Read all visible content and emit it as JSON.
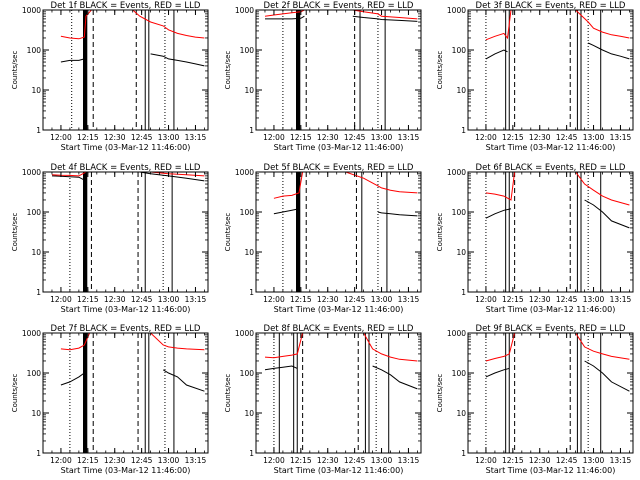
{
  "figure": {
    "start_time_label": "Start Time (03-Mar-12 11:46:00)",
    "ylabel": "Counts/sec",
    "x_ticks": [
      "12:00",
      "12:15",
      "12:30",
      "12:45",
      "13:00",
      "13:15"
    ],
    "y_ticks": [
      "1",
      "10",
      "100",
      "1000"
    ],
    "colors": {
      "events": "#000000",
      "lld": "#ff0000",
      "axis": "#000000"
    }
  },
  "chart_data": [
    {
      "type": "line",
      "title": "Det 1f BLACK = Events, RED = LLD",
      "xlabel": "Start Time (03-Mar-12 11:46:00)",
      "ylabel": "Counts/sec",
      "xlim": [
        "11:50",
        "13:22"
      ],
      "ylim": [
        1,
        1000
      ],
      "y_scale": "log",
      "x": [
        "12:00",
        "12:05",
        "12:10",
        "12:13",
        "12:14",
        "12:17",
        "12:20",
        "12:30",
        "12:40",
        "12:44",
        "12:50",
        "12:57",
        "13:00",
        "13:05",
        "13:10",
        "13:15",
        "13:20"
      ],
      "series": [
        {
          "name": "BLACK = Events",
          "values": [
            50,
            55,
            55,
            60,
            null,
            null,
            60,
            null,
            null,
            null,
            80,
            70,
            60,
            55,
            50,
            45,
            40
          ]
        },
        {
          "name": "RED = LLD",
          "values": [
            220,
            200,
            190,
            210,
            700,
            1000,
            1000,
            1000,
            1000,
            700,
            500,
            400,
            320,
            260,
            230,
            210,
            200
          ]
        }
      ],
      "markers": [
        {
          "kind": "dotted",
          "x": "12:06"
        },
        {
          "kind": "thick",
          "x": "12:13"
        },
        {
          "kind": "thick",
          "x": "12:14"
        },
        {
          "kind": "dashed",
          "x": "12:18"
        },
        {
          "kind": "dashed",
          "x": "12:42"
        },
        {
          "kind": "solid",
          "x": "12:47"
        },
        {
          "kind": "solid",
          "x": "12:49"
        },
        {
          "kind": "dotted",
          "x": "12:58"
        },
        {
          "kind": "solid",
          "x": "13:03"
        }
      ]
    },
    {
      "type": "line",
      "title": "Det 2f BLACK = Events, RED = LLD",
      "xlabel": "Start Time (03-Mar-12 11:46:00)",
      "ylabel": "Counts/sec",
      "xlim": [
        "11:50",
        "13:22"
      ],
      "ylim": [
        1,
        1000
      ],
      "y_scale": "log",
      "x": [
        "11:55",
        "12:00",
        "12:05",
        "12:10",
        "12:15",
        "12:17",
        "12:20",
        "12:30",
        "12:40",
        "12:44",
        "12:50",
        "12:58",
        "13:00",
        "13:10",
        "13:20"
      ],
      "series": [
        {
          "name": "BLACK = Events",
          "values": [
            600,
            600,
            600,
            600,
            620,
            700,
            null,
            null,
            null,
            700,
            650,
            600,
            580,
            550,
            520
          ]
        },
        {
          "name": "RED = LLD",
          "values": [
            700,
            750,
            800,
            850,
            900,
            1000,
            1000,
            1000,
            1000,
            1000,
            900,
            800,
            700,
            650,
            600
          ]
        }
      ],
      "markers": [
        {
          "kind": "dotted",
          "x": "12:05"
        },
        {
          "kind": "thick",
          "x": "12:13"
        },
        {
          "kind": "thick",
          "x": "12:14"
        },
        {
          "kind": "dashed",
          "x": "12:18"
        },
        {
          "kind": "dashed",
          "x": "12:45"
        },
        {
          "kind": "solid",
          "x": "12:48"
        },
        {
          "kind": "dotted",
          "x": "12:58"
        },
        {
          "kind": "solid",
          "x": "13:02"
        }
      ]
    },
    {
      "type": "line",
      "title": "Det 3f BLACK = Events, RED = LLD",
      "xlabel": "Start Time (03-Mar-12 11:46:00)",
      "ylabel": "Counts/sec",
      "xlim": [
        "11:50",
        "13:22"
      ],
      "ylim": [
        1,
        1000
      ],
      "y_scale": "log",
      "x": [
        "12:00",
        "12:05",
        "12:10",
        "12:12",
        "12:14",
        "12:16",
        "12:20",
        "12:40",
        "12:50",
        "12:57",
        "13:00",
        "13:05",
        "13:10",
        "13:15",
        "13:20"
      ],
      "series": [
        {
          "name": "BLACK = Events",
          "values": [
            60,
            80,
            100,
            90,
            null,
            null,
            null,
            null,
            null,
            150,
            130,
            100,
            80,
            70,
            60
          ]
        },
        {
          "name": "RED = LLD",
          "values": [
            180,
            220,
            260,
            200,
            1000,
            1000,
            1000,
            1000,
            1000,
            500,
            350,
            280,
            240,
            220,
            200
          ]
        }
      ],
      "markers": [
        {
          "kind": "dotted",
          "x": "12:00"
        },
        {
          "kind": "solid",
          "x": "12:11"
        },
        {
          "kind": "solid",
          "x": "12:13"
        },
        {
          "kind": "dashed",
          "x": "12:16"
        },
        {
          "kind": "dashed",
          "x": "12:47"
        },
        {
          "kind": "solid",
          "x": "12:51"
        },
        {
          "kind": "solid",
          "x": "12:53"
        },
        {
          "kind": "dotted",
          "x": "12:57"
        },
        {
          "kind": "solid",
          "x": "13:04"
        }
      ]
    },
    {
      "type": "line",
      "title": "Det 4f BLACK = Events, RED = LLD",
      "xlabel": "Start Time (03-Mar-12 11:46:00)",
      "ylabel": "Counts/sec",
      "xlim": [
        "11:50",
        "13:22"
      ],
      "ylim": [
        1,
        1000
      ],
      "y_scale": "log",
      "x": [
        "11:55",
        "12:00",
        "12:05",
        "12:10",
        "12:14",
        "12:16",
        "12:20",
        "12:40",
        "12:44",
        "12:50",
        "13:00",
        "13:10",
        "13:20"
      ],
      "series": [
        {
          "name": "BLACK = Events",
          "values": [
            800,
            780,
            760,
            740,
            600,
            null,
            null,
            null,
            1000,
            900,
            800,
            700,
            600
          ]
        },
        {
          "name": "RED = LLD",
          "values": [
            850,
            830,
            820,
            800,
            1000,
            1000,
            1000,
            1000,
            1000,
            1000,
            900,
            850,
            800
          ]
        }
      ],
      "markers": [
        {
          "kind": "dotted",
          "x": "12:05"
        },
        {
          "kind": "thick",
          "x": "12:13"
        },
        {
          "kind": "thick",
          "x": "12:14"
        },
        {
          "kind": "dashed",
          "x": "12:17"
        },
        {
          "kind": "dashed",
          "x": "12:43"
        },
        {
          "kind": "solid",
          "x": "12:47"
        },
        {
          "kind": "dotted",
          "x": "12:57"
        },
        {
          "kind": "solid",
          "x": "13:02"
        }
      ]
    },
    {
      "type": "line",
      "title": "Det 5f BLACK = Events, RED = LLD",
      "xlabel": "Start Time (03-Mar-12 11:46:00)",
      "ylabel": "Counts/sec",
      "xlim": [
        "11:50",
        "13:22"
      ],
      "ylim": [
        1,
        1000
      ],
      "y_scale": "log",
      "x": [
        "12:00",
        "12:05",
        "12:10",
        "12:14",
        "12:16",
        "12:20",
        "12:40",
        "12:50",
        "12:58",
        "13:00",
        "13:05",
        "13:10",
        "13:20"
      ],
      "series": [
        {
          "name": "BLACK = Events",
          "values": [
            90,
            100,
            110,
            120,
            null,
            null,
            null,
            null,
            100,
            95,
            90,
            85,
            80
          ]
        },
        {
          "name": "RED = LLD",
          "values": [
            220,
            250,
            260,
            300,
            1000,
            1000,
            1000,
            700,
            450,
            400,
            350,
            320,
            300
          ]
        }
      ],
      "markers": [
        {
          "kind": "dotted",
          "x": "12:05"
        },
        {
          "kind": "thick",
          "x": "12:13"
        },
        {
          "kind": "thick",
          "x": "12:14"
        },
        {
          "kind": "dashed",
          "x": "12:18"
        },
        {
          "kind": "dashed",
          "x": "12:46"
        },
        {
          "kind": "solid",
          "x": "12:49"
        },
        {
          "kind": "dotted",
          "x": "12:58"
        },
        {
          "kind": "solid",
          "x": "13:03"
        }
      ]
    },
    {
      "type": "line",
      "title": "Det 6f BLACK = Events, RED = LLD",
      "xlabel": "Start Time (03-Mar-12 11:46:00)",
      "ylabel": "Counts/sec",
      "xlim": [
        "11:50",
        "13:22"
      ],
      "ylim": [
        1,
        1000
      ],
      "y_scale": "log",
      "x": [
        "12:00",
        "12:05",
        "12:10",
        "12:14",
        "12:16",
        "12:20",
        "12:40",
        "12:50",
        "12:55",
        "13:00",
        "13:05",
        "13:10",
        "13:20"
      ],
      "series": [
        {
          "name": "BLACK = Events",
          "values": [
            70,
            90,
            110,
            120,
            null,
            null,
            null,
            null,
            200,
            150,
            100,
            60,
            40
          ]
        },
        {
          "name": "RED = LLD",
          "values": [
            300,
            280,
            250,
            200,
            1000,
            1000,
            1000,
            1000,
            500,
            350,
            250,
            200,
            150
          ]
        }
      ],
      "markers": [
        {
          "kind": "dotted",
          "x": "12:00"
        },
        {
          "kind": "solid",
          "x": "12:11"
        },
        {
          "kind": "solid",
          "x": "12:13"
        },
        {
          "kind": "dashed",
          "x": "12:16"
        },
        {
          "kind": "dashed",
          "x": "12:47"
        },
        {
          "kind": "solid",
          "x": "12:51"
        },
        {
          "kind": "solid",
          "x": "12:53"
        },
        {
          "kind": "dotted",
          "x": "12:57"
        },
        {
          "kind": "solid",
          "x": "13:04"
        }
      ]
    },
    {
      "type": "line",
      "title": "Det 7f BLACK = Events, RED = LLD",
      "xlabel": "Start Time (03-Mar-12 11:46:00)",
      "ylabel": "Counts/sec",
      "xlim": [
        "11:50",
        "13:22"
      ],
      "ylim": [
        1,
        1000
      ],
      "y_scale": "log",
      "x": [
        "12:00",
        "12:05",
        "12:10",
        "12:13",
        "12:16",
        "12:20",
        "12:40",
        "12:50",
        "12:57",
        "13:00",
        "13:05",
        "13:10",
        "13:20"
      ],
      "series": [
        {
          "name": "BLACK = Events",
          "values": [
            50,
            60,
            80,
            100,
            null,
            null,
            null,
            null,
            120,
            100,
            80,
            50,
            35
          ]
        },
        {
          "name": "RED = LLD",
          "values": [
            400,
            380,
            420,
            500,
            1000,
            1000,
            1000,
            1000,
            500,
            450,
            420,
            400,
            380
          ]
        }
      ],
      "markers": [
        {
          "kind": "dotted",
          "x": "12:05"
        },
        {
          "kind": "thick",
          "x": "12:13"
        },
        {
          "kind": "thick",
          "x": "12:14"
        },
        {
          "kind": "dashed",
          "x": "12:18"
        },
        {
          "kind": "dashed",
          "x": "12:43"
        },
        {
          "kind": "solid",
          "x": "12:47"
        },
        {
          "kind": "solid",
          "x": "12:49"
        },
        {
          "kind": "dotted",
          "x": "12:58"
        },
        {
          "kind": "solid",
          "x": "13:03"
        }
      ]
    },
    {
      "type": "line",
      "title": "Det 8f BLACK = Events, RED = LLD",
      "xlabel": "Start Time (03-Mar-12 11:46:00)",
      "ylabel": "Counts/sec",
      "xlim": [
        "11:50",
        "13:22"
      ],
      "ylim": [
        1,
        1000
      ],
      "y_scale": "log",
      "x": [
        "11:55",
        "12:00",
        "12:05",
        "12:10",
        "12:13",
        "12:16",
        "12:20",
        "12:40",
        "12:50",
        "12:55",
        "13:00",
        "13:05",
        "13:10",
        "13:20"
      ],
      "series": [
        {
          "name": "BLACK = Events",
          "values": [
            120,
            130,
            140,
            150,
            130,
            null,
            null,
            null,
            null,
            150,
            120,
            90,
            60,
            40
          ]
        },
        {
          "name": "RED = LLD",
          "values": [
            250,
            240,
            260,
            280,
            300,
            1000,
            1000,
            1000,
            1000,
            400,
            300,
            250,
            220,
            200
          ]
        }
      ],
      "markers": [
        {
          "kind": "dotted",
          "x": "12:00"
        },
        {
          "kind": "solid",
          "x": "12:03"
        },
        {
          "kind": "solid",
          "x": "12:11"
        },
        {
          "kind": "solid",
          "x": "12:13"
        },
        {
          "kind": "dashed",
          "x": "12:16"
        },
        {
          "kind": "dashed",
          "x": "12:47"
        },
        {
          "kind": "solid",
          "x": "12:51"
        },
        {
          "kind": "solid",
          "x": "12:53"
        },
        {
          "kind": "dotted",
          "x": "12:57"
        },
        {
          "kind": "solid",
          "x": "13:04"
        }
      ]
    },
    {
      "type": "line",
      "title": "Det 9f BLACK = Events, RED = LLD",
      "xlabel": "Start Time (03-Mar-12 11:46:00)",
      "ylabel": "Counts/sec",
      "xlim": [
        "11:50",
        "13:22"
      ],
      "ylim": [
        1,
        1000
      ],
      "y_scale": "log",
      "x": [
        "12:00",
        "12:05",
        "12:10",
        "12:13",
        "12:16",
        "12:20",
        "12:40",
        "12:50",
        "12:55",
        "13:00",
        "13:05",
        "13:10",
        "13:20"
      ],
      "series": [
        {
          "name": "BLACK = Events",
          "values": [
            80,
            100,
            120,
            130,
            null,
            null,
            null,
            null,
            200,
            150,
            100,
            60,
            35
          ]
        },
        {
          "name": "RED = LLD",
          "values": [
            200,
            230,
            260,
            300,
            1000,
            1000,
            1000,
            1000,
            450,
            350,
            300,
            260,
            220
          ]
        }
      ],
      "markers": [
        {
          "kind": "dotted",
          "x": "12:00"
        },
        {
          "kind": "solid",
          "x": "12:11"
        },
        {
          "kind": "solid",
          "x": "12:13"
        },
        {
          "kind": "dashed",
          "x": "12:16"
        },
        {
          "kind": "dashed",
          "x": "12:47"
        },
        {
          "kind": "solid",
          "x": "12:51"
        },
        {
          "kind": "solid",
          "x": "12:53"
        },
        {
          "kind": "dotted",
          "x": "12:57"
        },
        {
          "kind": "solid",
          "x": "13:04"
        }
      ]
    }
  ]
}
